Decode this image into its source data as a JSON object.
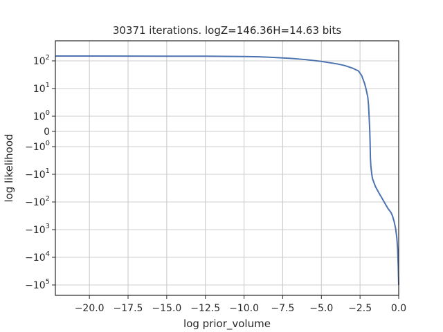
{
  "chart_data": {
    "type": "line",
    "title": "30371 iterations. logZ=146.36H=14.63 bits",
    "xlabel": "log prior_volume",
    "ylabel": "log likelihood",
    "xlim": [
      -22.2,
      0
    ],
    "yscale": "symlog",
    "grid": true,
    "x_ticks": [
      {
        "value": -20.0,
        "label": "−20.0"
      },
      {
        "value": -17.5,
        "label": "−17.5"
      },
      {
        "value": -15.0,
        "label": "−15.0"
      },
      {
        "value": -12.5,
        "label": "−12.5"
      },
      {
        "value": -10.0,
        "label": "−10.0"
      },
      {
        "value": -7.5,
        "label": "−7.5"
      },
      {
        "value": -5.0,
        "label": "−5.0"
      },
      {
        "value": -2.5,
        "label": "−2.5"
      },
      {
        "value": 0.0,
        "label": "0.0"
      }
    ],
    "y_ticks": [
      {
        "value": 100,
        "base": "10",
        "exp": "2",
        "neg": false
      },
      {
        "value": 10,
        "base": "10",
        "exp": "1",
        "neg": false
      },
      {
        "value": 1,
        "base": "10",
        "exp": "0",
        "neg": false
      },
      {
        "value": 0,
        "base": "0",
        "exp": "",
        "neg": false
      },
      {
        "value": -1,
        "base": "10",
        "exp": "0",
        "neg": true
      },
      {
        "value": -10,
        "base": "10",
        "exp": "1",
        "neg": true
      },
      {
        "value": -100,
        "base": "10",
        "exp": "2",
        "neg": true
      },
      {
        "value": -1000,
        "base": "10",
        "exp": "3",
        "neg": true
      },
      {
        "value": -10000,
        "base": "10",
        "exp": "4",
        "neg": true
      },
      {
        "value": -100000,
        "base": "10",
        "exp": "5",
        "neg": true
      }
    ],
    "series": [
      {
        "color": "#4c72b0",
        "x": [
          -22.2,
          -20,
          -17.5,
          -15,
          -12.5,
          -10,
          -9,
          -8,
          -7,
          -6,
          -5,
          -4,
          -3.5,
          -3,
          -2.6,
          -2.4,
          -2.2,
          -2.1,
          -2.0,
          -1.95,
          -1.9,
          -1.87,
          -1.85,
          -1.83,
          -1.8,
          -1.75,
          -1.7,
          -1.6,
          -1.5,
          -1.3,
          -1.1,
          -0.9,
          -0.7,
          -0.5,
          -0.4,
          -0.3,
          -0.2,
          -0.12,
          -0.07,
          -0.03,
          0
        ],
        "y": [
          150,
          150,
          149,
          148,
          147,
          143,
          140,
          132,
          123,
          111,
          96,
          78,
          68,
          55,
          43,
          30,
          15,
          9,
          5,
          2.5,
          0.7,
          0,
          -0.7,
          -2.5,
          -5,
          -9,
          -14,
          -20,
          -28,
          -45,
          -70,
          -110,
          -170,
          -240,
          -320,
          -500,
          -900,
          -2000,
          -5000,
          -20000,
          -100000
        ]
      }
    ]
  }
}
